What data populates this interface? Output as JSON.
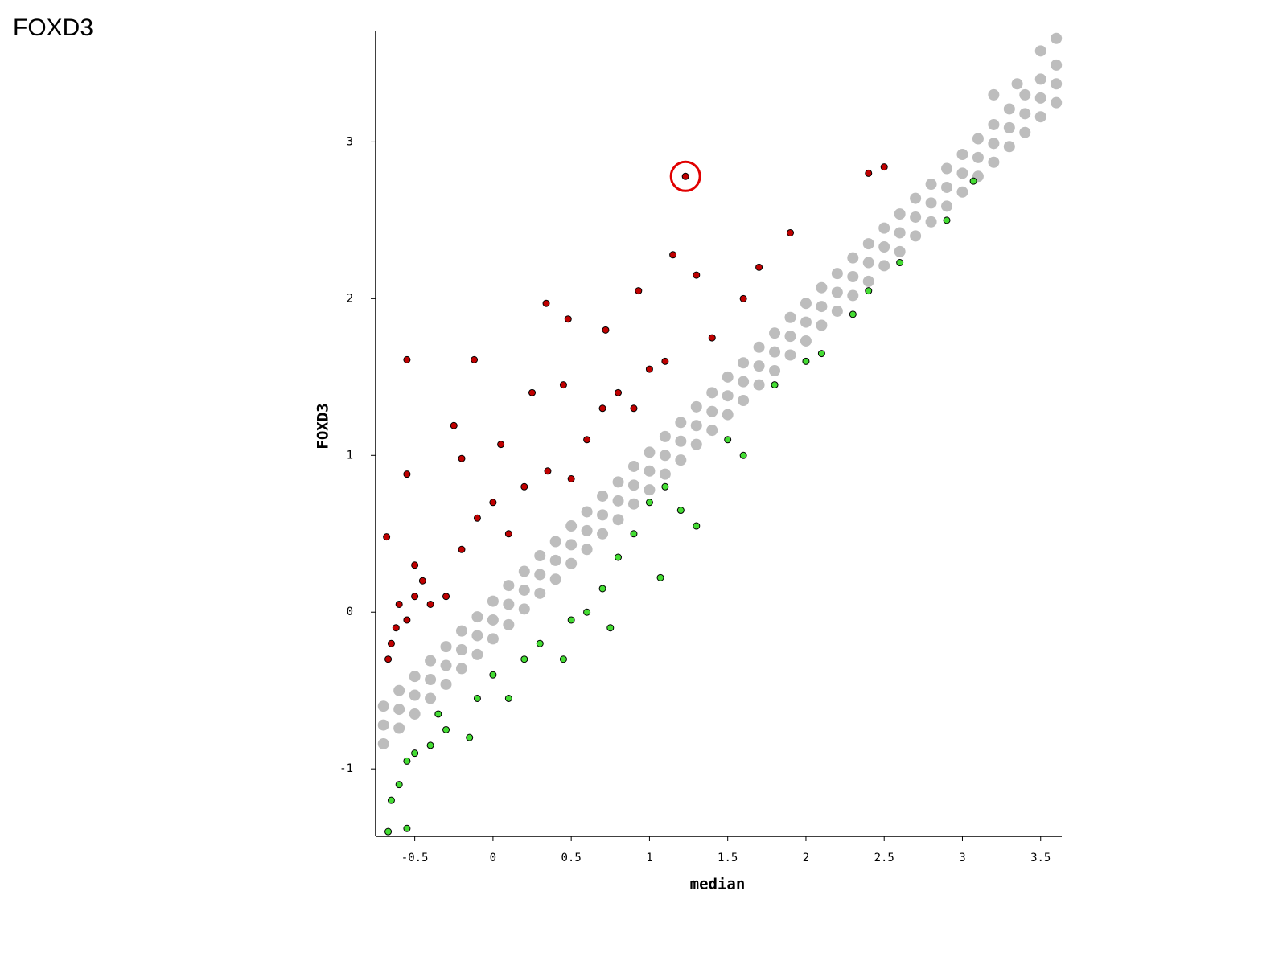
{
  "page_title": "FOXD3",
  "chart_data": {
    "type": "scatter",
    "xlabel": "median",
    "ylabel": "FOXD3",
    "xlim": [
      -0.75,
      3.635
    ],
    "ylim": [
      -1.43,
      3.71
    ],
    "xticks": [
      -0.5,
      0,
      0.5,
      1,
      1.5,
      2,
      2.5,
      3,
      3.5
    ],
    "yticks": [
      -1,
      0,
      1,
      2,
      3
    ],
    "series": [
      {
        "color": "#bdbdbd",
        "x": [
          -0.7,
          -0.6,
          -0.5,
          -0.4,
          -0.3,
          -0.2,
          -0.1,
          0,
          0.1,
          0.2,
          0.3,
          0.4,
          0.5,
          0.6,
          0.7,
          0.8,
          0.9,
          1.0,
          1.1,
          1.2,
          1.3,
          1.4,
          1.5,
          1.6,
          1.7,
          1.8,
          1.9,
          2.0,
          2.1,
          2.2,
          2.3,
          2.4,
          2.5,
          2.6,
          2.7,
          2.8,
          2.9,
          3.0,
          3.1,
          3.2,
          3.3,
          3.4,
          3.5,
          3.6,
          -0.7,
          -0.6,
          -0.5,
          -0.4,
          -0.3,
          -0.2,
          -0.1,
          0,
          0.1,
          0.2,
          0.3,
          0.4,
          0.5,
          0.6,
          0.7,
          0.8,
          0.9,
          1.0,
          1.1,
          1.2,
          1.3,
          1.4,
          1.5,
          1.6,
          1.7,
          1.8,
          1.9,
          2.0,
          2.1,
          2.2,
          2.3,
          2.4,
          2.5,
          2.6,
          2.7,
          2.8,
          2.9,
          3.0,
          3.1,
          3.2,
          3.3,
          3.4,
          3.5,
          3.6,
          -0.7,
          -0.6,
          -0.5,
          -0.4,
          -0.3,
          -0.2,
          -0.1,
          0,
          0.1,
          0.2,
          0.3,
          0.4,
          0.5,
          0.6,
          0.7,
          0.8,
          0.9,
          1.0,
          1.1,
          1.2,
          1.3,
          1.4,
          1.5,
          1.6,
          1.7,
          1.8,
          1.9,
          2.0,
          2.1,
          2.2,
          2.3,
          2.4,
          2.5,
          2.6,
          2.7,
          2.8,
          2.9,
          3.0,
          3.1,
          3.2,
          3.3,
          3.4,
          3.5,
          3.6,
          3.2,
          3.35,
          3.5,
          3.6
        ],
        "values": [
          -0.6,
          -0.5,
          -0.41,
          -0.31,
          -0.22,
          -0.12,
          -0.03,
          0.07,
          0.17,
          0.26,
          0.36,
          0.45,
          0.55,
          0.64,
          0.74,
          0.83,
          0.93,
          1.02,
          1.12,
          1.21,
          1.31,
          1.4,
          1.5,
          1.59,
          1.69,
          1.78,
          1.88,
          1.97,
          2.07,
          2.16,
          2.26,
          2.35,
          2.45,
          2.54,
          2.64,
          2.73,
          2.83,
          2.92,
          3.02,
          3.11,
          3.21,
          3.3,
          3.4,
          3.49,
          -0.72,
          -0.62,
          -0.53,
          -0.43,
          -0.34,
          -0.24,
          -0.15,
          -0.05,
          0.05,
          0.14,
          0.24,
          0.33,
          0.43,
          0.52,
          0.62,
          0.71,
          0.81,
          0.9,
          1.0,
          1.09,
          1.19,
          1.28,
          1.38,
          1.47,
          1.57,
          1.66,
          1.76,
          1.85,
          1.95,
          2.04,
          2.14,
          2.23,
          2.33,
          2.42,
          2.52,
          2.61,
          2.71,
          2.8,
          2.9,
          2.99,
          3.09,
          3.18,
          3.28,
          3.37,
          -0.84,
          -0.74,
          -0.65,
          -0.55,
          -0.46,
          -0.36,
          -0.27,
          -0.17,
          -0.08,
          0.02,
          0.12,
          0.21,
          0.31,
          0.4,
          0.5,
          0.59,
          0.69,
          0.78,
          0.88,
          0.97,
          1.07,
          1.16,
          1.26,
          1.35,
          1.45,
          1.54,
          1.64,
          1.73,
          1.83,
          1.92,
          2.02,
          2.11,
          2.21,
          2.3,
          2.4,
          2.49,
          2.59,
          2.68,
          2.78,
          2.87,
          2.97,
          3.06,
          3.16,
          3.25,
          3.3,
          3.37,
          3.58,
          3.66
        ]
      },
      {
        "color": "#c00000",
        "x": [
          -0.67,
          -0.65,
          -0.62,
          -0.6,
          -0.55,
          -0.5,
          -0.68,
          -0.55,
          -0.55,
          -0.5,
          -0.45,
          -0.4,
          -0.3,
          -0.25,
          -0.2,
          -0.2,
          -0.12,
          -0.1,
          0,
          0.05,
          0.1,
          0.2,
          0.25,
          0.34,
          0.35,
          0.45,
          0.48,
          0.5,
          0.6,
          0.7,
          0.72,
          0.8,
          0.9,
          0.93,
          1.0,
          1.1,
          1.15,
          1.3,
          1.4,
          1.6,
          1.7,
          1.9,
          2.4,
          2.5
        ],
        "values": [
          -0.3,
          -0.2,
          -0.1,
          0.05,
          -0.05,
          0.1,
          0.48,
          0.88,
          1.61,
          0.3,
          0.2,
          0.05,
          0.1,
          1.19,
          0.4,
          0.98,
          1.61,
          0.6,
          0.7,
          1.07,
          0.5,
          0.8,
          1.4,
          1.97,
          0.9,
          1.45,
          1.87,
          0.85,
          1.1,
          1.3,
          1.8,
          1.4,
          1.3,
          2.05,
          1.55,
          1.6,
          2.28,
          2.15,
          1.75,
          2.0,
          2.2,
          2.42,
          2.8,
          2.84
        ]
      },
      {
        "color": "#44dd33",
        "x": [
          -0.67,
          -0.65,
          -0.6,
          -0.55,
          -0.55,
          -0.5,
          -0.4,
          -0.35,
          -0.3,
          -0.15,
          -0.1,
          0,
          0.1,
          0.2,
          0.3,
          0.45,
          0.5,
          0.6,
          0.7,
          0.75,
          0.8,
          0.9,
          1.0,
          1.07,
          1.1,
          1.2,
          1.3,
          1.5,
          1.6,
          1.8,
          2.0,
          2.1,
          2.3,
          2.4,
          2.6,
          2.9,
          3.07
        ],
        "values": [
          -1.4,
          -1.2,
          -1.1,
          -1.38,
          -0.95,
          -0.9,
          -0.85,
          -0.65,
          -0.75,
          -0.8,
          -0.55,
          -0.4,
          -0.55,
          -0.3,
          -0.2,
          -0.3,
          -0.05,
          0.0,
          0.15,
          -0.1,
          0.35,
          0.5,
          0.7,
          0.22,
          0.8,
          0.65,
          0.55,
          1.1,
          1.0,
          1.45,
          1.6,
          1.65,
          1.9,
          2.05,
          2.23,
          2.5,
          2.75
        ]
      },
      {
        "color": "#c00000",
        "x": [
          1.23
        ],
        "values": [
          2.78
        ],
        "highlight": "#e00000"
      }
    ]
  }
}
